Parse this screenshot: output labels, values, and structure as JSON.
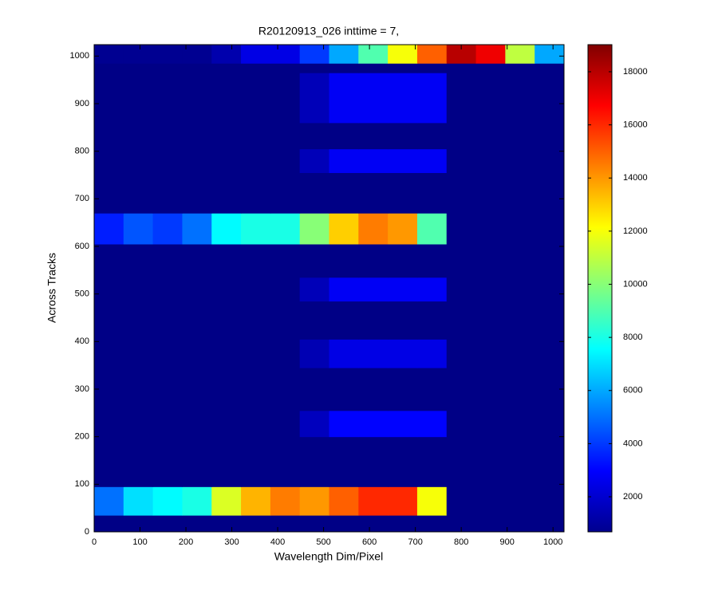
{
  "chart_data": {
    "type": "heatmap",
    "title": "R20120913_026 inttime = 7,",
    "x_label": "Wavelength Dim/Pixel",
    "y_label": "Across Tracks",
    "x_edges": [
      0,
      64,
      128,
      192,
      256,
      320,
      384,
      448,
      512,
      576,
      640,
      704,
      768,
      832,
      896,
      960,
      1024
    ],
    "y_edges": [
      0,
      35,
      95,
      200,
      255,
      345,
      405,
      485,
      535,
      605,
      670,
      755,
      805,
      860,
      965,
      985,
      1024
    ],
    "z": [
      [
        800,
        800,
        800,
        800,
        800,
        800,
        800,
        800,
        800,
        800,
        800,
        800,
        800,
        800,
        800,
        800
      ],
      [
        5000,
        7000,
        7500,
        8000,
        11500,
        13500,
        14500,
        14000,
        15000,
        16000,
        16000,
        12000,
        800,
        800,
        800,
        800
      ],
      [
        800,
        800,
        800,
        800,
        800,
        800,
        800,
        800,
        800,
        800,
        800,
        800,
        800,
        800,
        800,
        800
      ],
      [
        800,
        800,
        800,
        800,
        800,
        800,
        800,
        1800,
        3000,
        3000,
        3000,
        3000,
        800,
        800,
        800,
        800
      ],
      [
        800,
        800,
        800,
        800,
        800,
        800,
        800,
        800,
        800,
        800,
        800,
        800,
        800,
        800,
        800,
        800
      ],
      [
        800,
        800,
        800,
        800,
        800,
        800,
        800,
        1600,
        2500,
        2500,
        2500,
        2500,
        800,
        800,
        800,
        800
      ],
      [
        800,
        800,
        800,
        800,
        800,
        800,
        800,
        800,
        800,
        800,
        800,
        800,
        800,
        800,
        800,
        800
      ],
      [
        800,
        800,
        800,
        800,
        800,
        800,
        800,
        1700,
        2800,
        2800,
        2800,
        2800,
        800,
        800,
        800,
        800
      ],
      [
        800,
        800,
        800,
        800,
        800,
        800,
        800,
        800,
        800,
        800,
        800,
        800,
        800,
        800,
        800,
        800
      ],
      [
        3500,
        4500,
        4000,
        5000,
        7500,
        8000,
        8000,
        10000,
        13000,
        14500,
        14000,
        9000,
        800,
        800,
        800,
        800
      ],
      [
        800,
        800,
        800,
        800,
        800,
        800,
        800,
        800,
        800,
        800,
        800,
        800,
        800,
        800,
        800,
        800
      ],
      [
        800,
        800,
        800,
        800,
        800,
        800,
        800,
        1700,
        2800,
        2800,
        2800,
        2800,
        800,
        800,
        800,
        800
      ],
      [
        800,
        800,
        800,
        800,
        800,
        800,
        800,
        800,
        800,
        800,
        800,
        800,
        800,
        800,
        800,
        800
      ],
      [
        800,
        800,
        800,
        800,
        800,
        800,
        800,
        1700,
        2800,
        2800,
        2800,
        2800,
        800,
        800,
        800,
        800
      ],
      [
        800,
        800,
        800,
        800,
        800,
        800,
        800,
        800,
        800,
        800,
        800,
        800,
        800,
        800,
        800,
        800
      ],
      [
        1000,
        1000,
        1000,
        1000,
        1500,
        2500,
        2500,
        4000,
        6000,
        9000,
        12000,
        15000,
        18000,
        17000,
        11000,
        6000
      ]
    ],
    "xlim": [
      0,
      1024
    ],
    "ylim": [
      0,
      1024
    ],
    "xticks": [
      0,
      100,
      200,
      300,
      400,
      500,
      600,
      700,
      800,
      900,
      1000
    ],
    "yticks": [
      0,
      100,
      200,
      300,
      400,
      500,
      600,
      700,
      800,
      900,
      1000
    ],
    "clim": [
      680,
      19020
    ],
    "cticks": [
      2000,
      4000,
      6000,
      8000,
      10000,
      12000,
      14000,
      16000,
      18000
    ],
    "colormap": "jet"
  }
}
